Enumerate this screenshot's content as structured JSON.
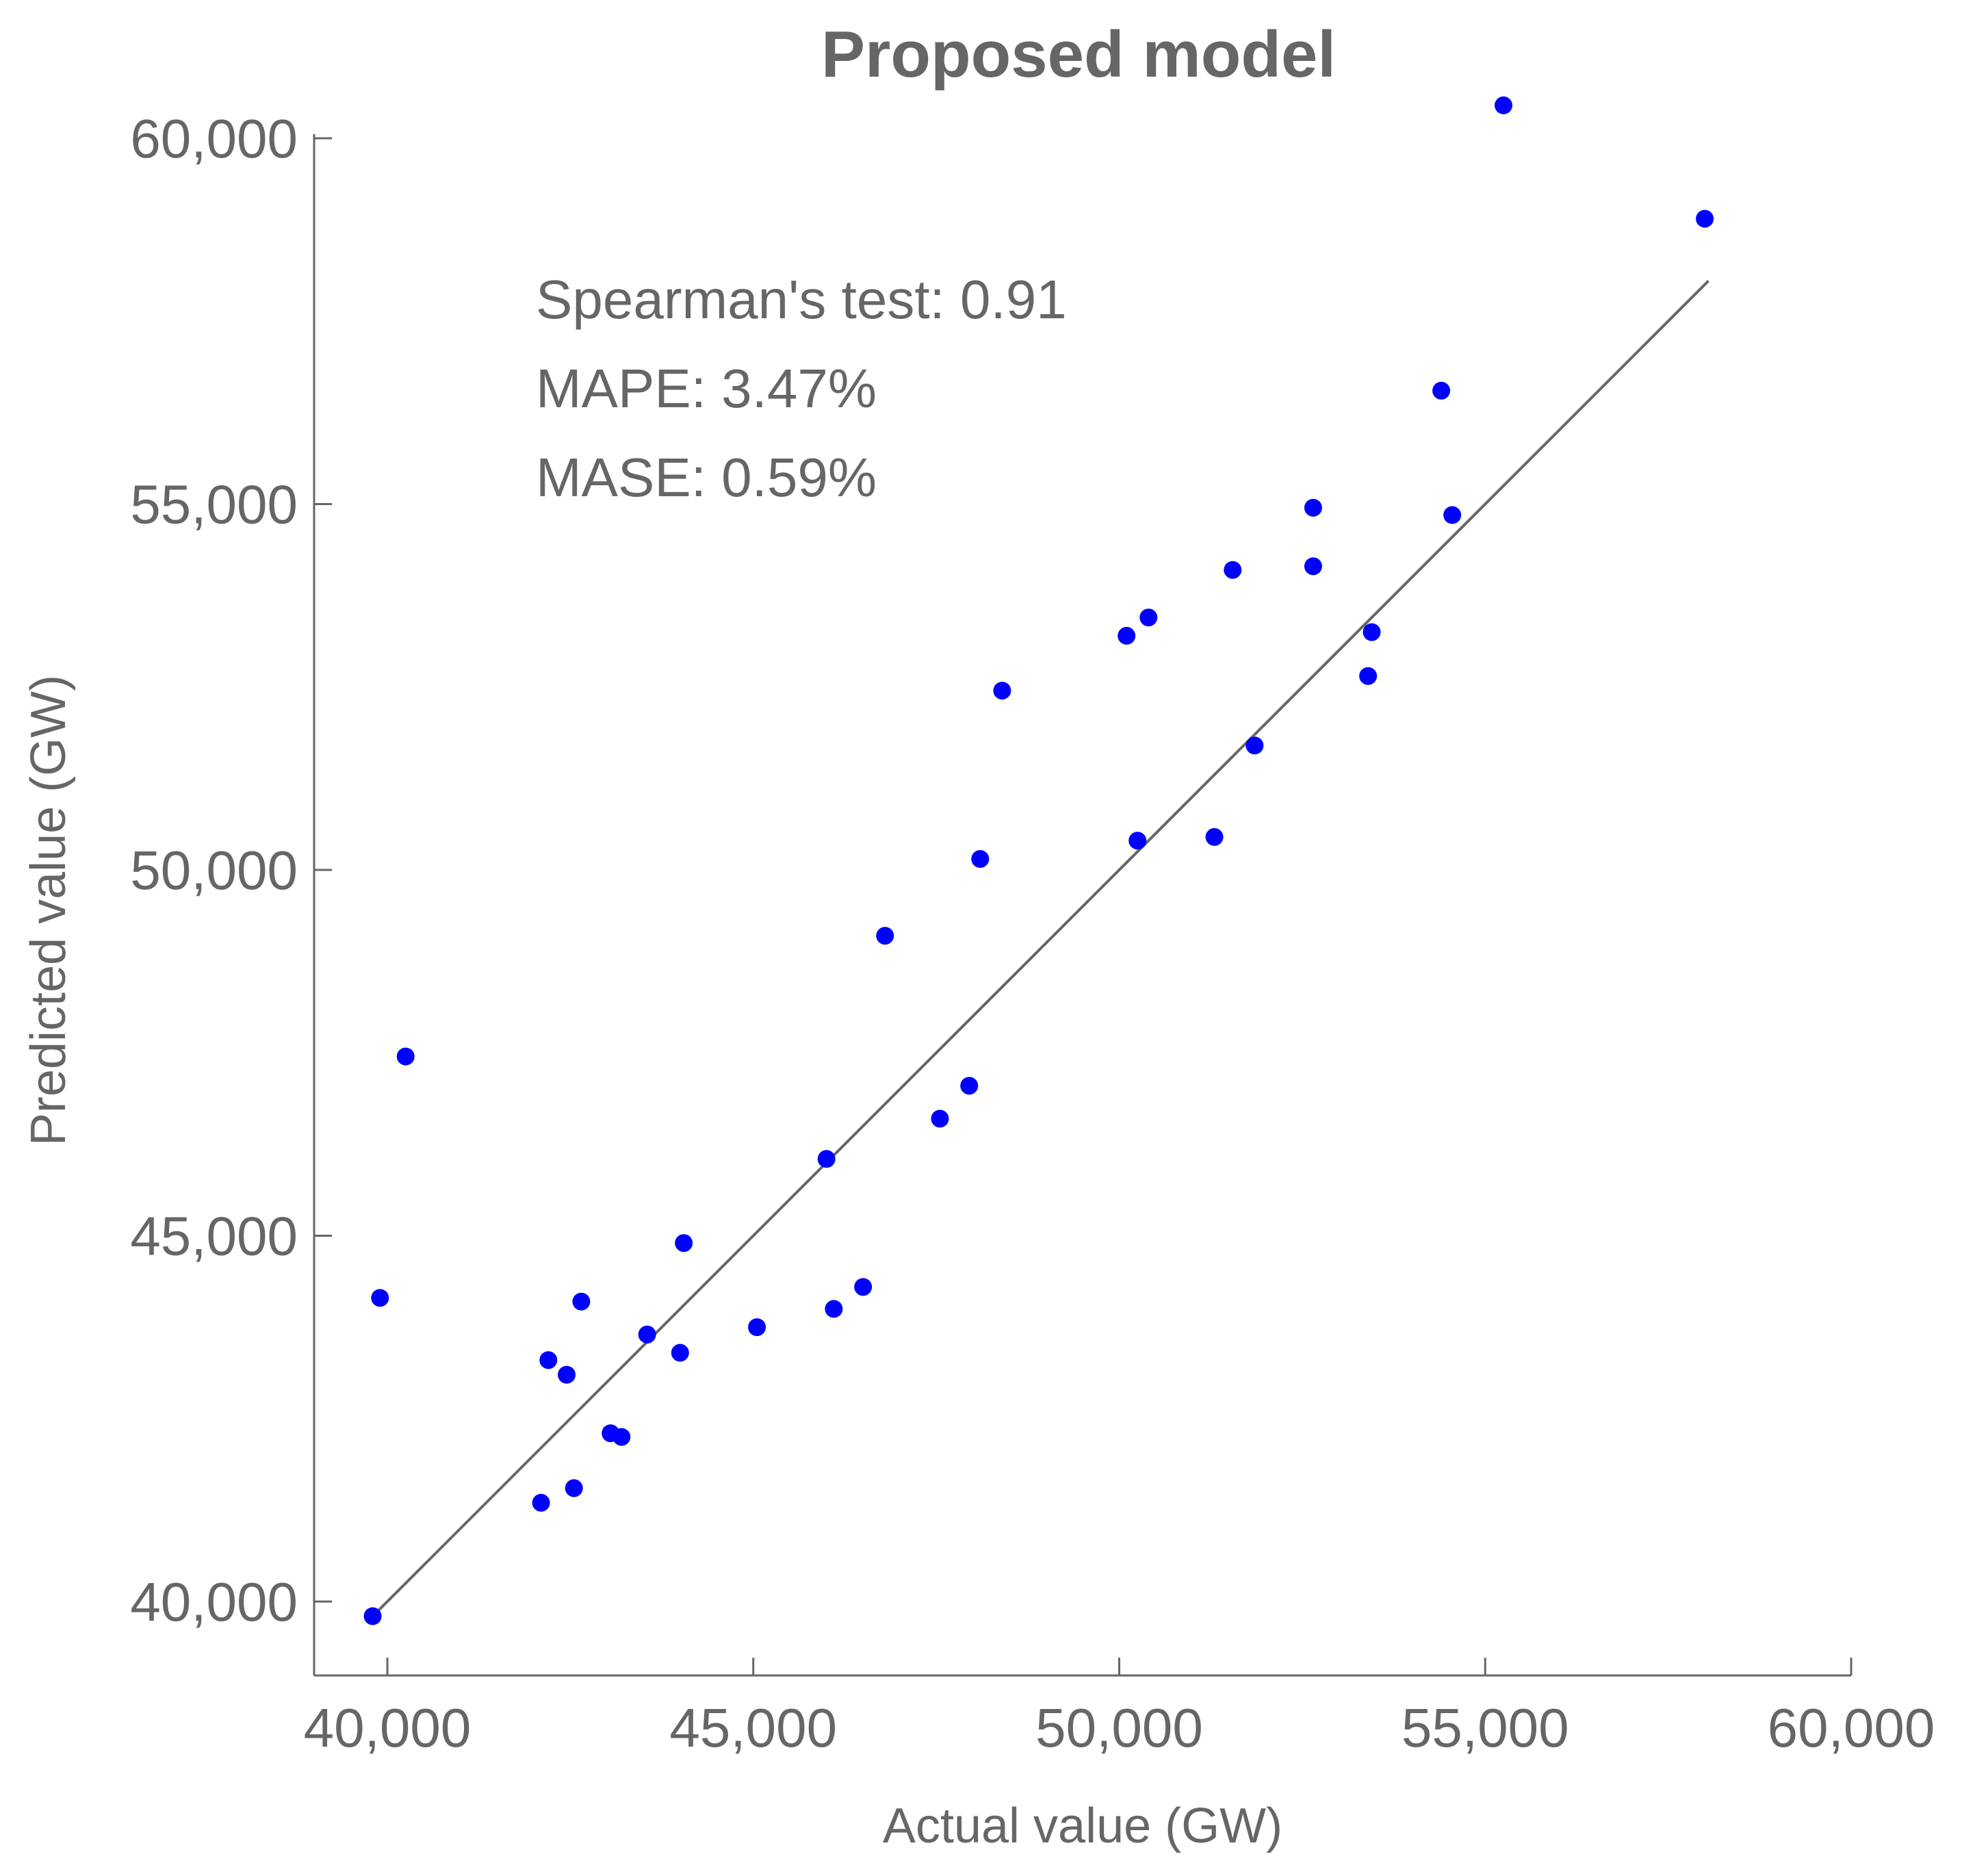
{
  "chart_data": {
    "type": "scatter",
    "title": "Proposed model",
    "xlabel": "Actual value (GW)",
    "ylabel": "Predicted value (GW)",
    "xlim": [
      39000,
      60000
    ],
    "ylim": [
      39000,
      60400
    ],
    "xticks": [
      40000,
      45000,
      50000,
      55000,
      60000
    ],
    "yticks": [
      40000,
      45000,
      50000,
      55000,
      60000
    ],
    "xtick_labels": [
      "40,000",
      "45,000",
      "50,000",
      "55,000",
      "60,000"
    ],
    "ytick_labels": [
      "40,000",
      "45,000",
      "50,000",
      "55,000",
      "60,000"
    ],
    "annotations": [
      "Spearman's test: 0.91",
      "MAPE: 3.47%",
      "MASE: 0.59%"
    ],
    "point_color": "#0000ff",
    "line_color": "#666666",
    "grid": false,
    "fit_line": {
      "x": [
        39850,
        58050
      ],
      "y": [
        39850,
        58050
      ]
    },
    "points": [
      {
        "x": 39800,
        "y": 39800
      },
      {
        "x": 39900,
        "y": 44150
      },
      {
        "x": 40250,
        "y": 47450
      },
      {
        "x": 42100,
        "y": 41350
      },
      {
        "x": 42200,
        "y": 43300
      },
      {
        "x": 42450,
        "y": 43100
      },
      {
        "x": 42550,
        "y": 41550
      },
      {
        "x": 42650,
        "y": 44100
      },
      {
        "x": 43050,
        "y": 42300
      },
      {
        "x": 43200,
        "y": 42250
      },
      {
        "x": 43550,
        "y": 43650
      },
      {
        "x": 44000,
        "y": 43400
      },
      {
        "x": 44050,
        "y": 44900
      },
      {
        "x": 45050,
        "y": 43750
      },
      {
        "x": 46000,
        "y": 46050
      },
      {
        "x": 46100,
        "y": 44000
      },
      {
        "x": 46500,
        "y": 44300
      },
      {
        "x": 46800,
        "y": 49100
      },
      {
        "x": 47550,
        "y": 46600
      },
      {
        "x": 47950,
        "y": 47050
      },
      {
        "x": 48100,
        "y": 50150
      },
      {
        "x": 48400,
        "y": 52450
      },
      {
        "x": 50100,
        "y": 53200
      },
      {
        "x": 50250,
        "y": 50400
      },
      {
        "x": 50400,
        "y": 53450
      },
      {
        "x": 51300,
        "y": 50450
      },
      {
        "x": 51550,
        "y": 54100
      },
      {
        "x": 51850,
        "y": 51700
      },
      {
        "x": 52650,
        "y": 54950
      },
      {
        "x": 52650,
        "y": 54150
      },
      {
        "x": 53400,
        "y": 52650
      },
      {
        "x": 53450,
        "y": 53250
      },
      {
        "x": 54400,
        "y": 56550
      },
      {
        "x": 54550,
        "y": 54850
      },
      {
        "x": 55250,
        "y": 60450
      },
      {
        "x": 58000,
        "y": 58900
      }
    ]
  }
}
